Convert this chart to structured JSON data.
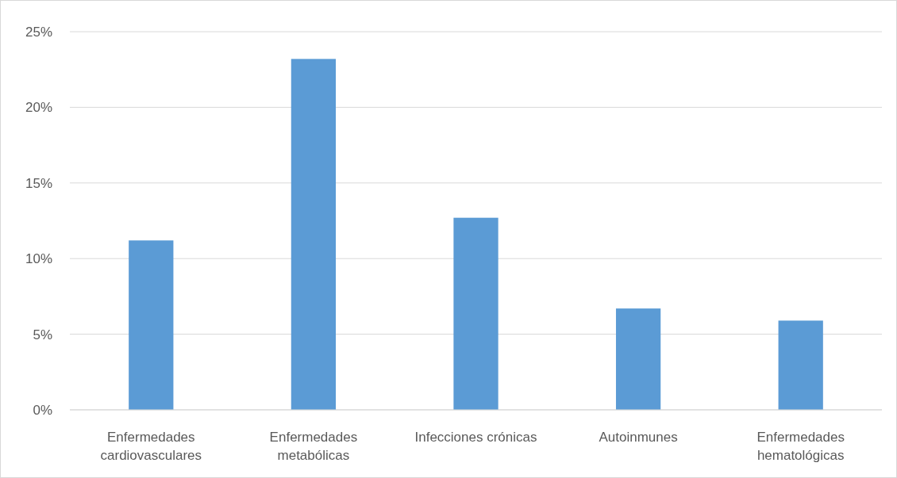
{
  "chart_data": {
    "type": "bar",
    "categories": [
      "Enfermedades cardiovasculares",
      "Enfermedades metabólicas",
      "Infecciones crónicas",
      "Autoinmunes",
      "Enfermedades hematológicas"
    ],
    "values": [
      11.2,
      23.2,
      12.7,
      6.7,
      5.9
    ],
    "color": "#5b9bd5",
    "ylim": [
      0,
      25
    ],
    "yticks": [
      {
        "value": 0,
        "label": "0%"
      },
      {
        "value": 5,
        "label": "5%"
      },
      {
        "value": 10,
        "label": "10%"
      },
      {
        "value": 15,
        "label": "15%"
      },
      {
        "value": 20,
        "label": "20%"
      },
      {
        "value": 25,
        "label": "25%"
      }
    ],
    "grid": "y"
  }
}
